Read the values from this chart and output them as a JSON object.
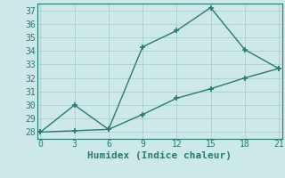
{
  "line1_x": [
    0,
    3,
    6,
    9,
    12,
    15,
    18,
    21
  ],
  "line1_y": [
    28.0,
    30.0,
    28.2,
    34.3,
    35.5,
    37.2,
    34.1,
    32.7
  ],
  "line2_x": [
    0,
    3,
    6,
    9,
    12,
    15,
    18,
    21
  ],
  "line2_y": [
    28.0,
    28.1,
    28.2,
    29.3,
    30.5,
    31.2,
    32.0,
    32.7
  ],
  "line_color": "#2a7a70",
  "marker": "+",
  "marker_size": 5,
  "marker_lw": 1.2,
  "linewidth": 1.0,
  "xlabel": "Humidex (Indice chaleur)",
  "ylim": [
    27.5,
    37.5
  ],
  "xlim": [
    -0.3,
    21.3
  ],
  "yticks": [
    28,
    29,
    30,
    31,
    32,
    33,
    34,
    35,
    36,
    37
  ],
  "xticks": [
    0,
    3,
    6,
    9,
    12,
    15,
    18,
    21
  ],
  "background_color": "#cce8e8",
  "grid_color": "#aacece",
  "xlabel_fontsize": 8,
  "tick_fontsize": 7
}
